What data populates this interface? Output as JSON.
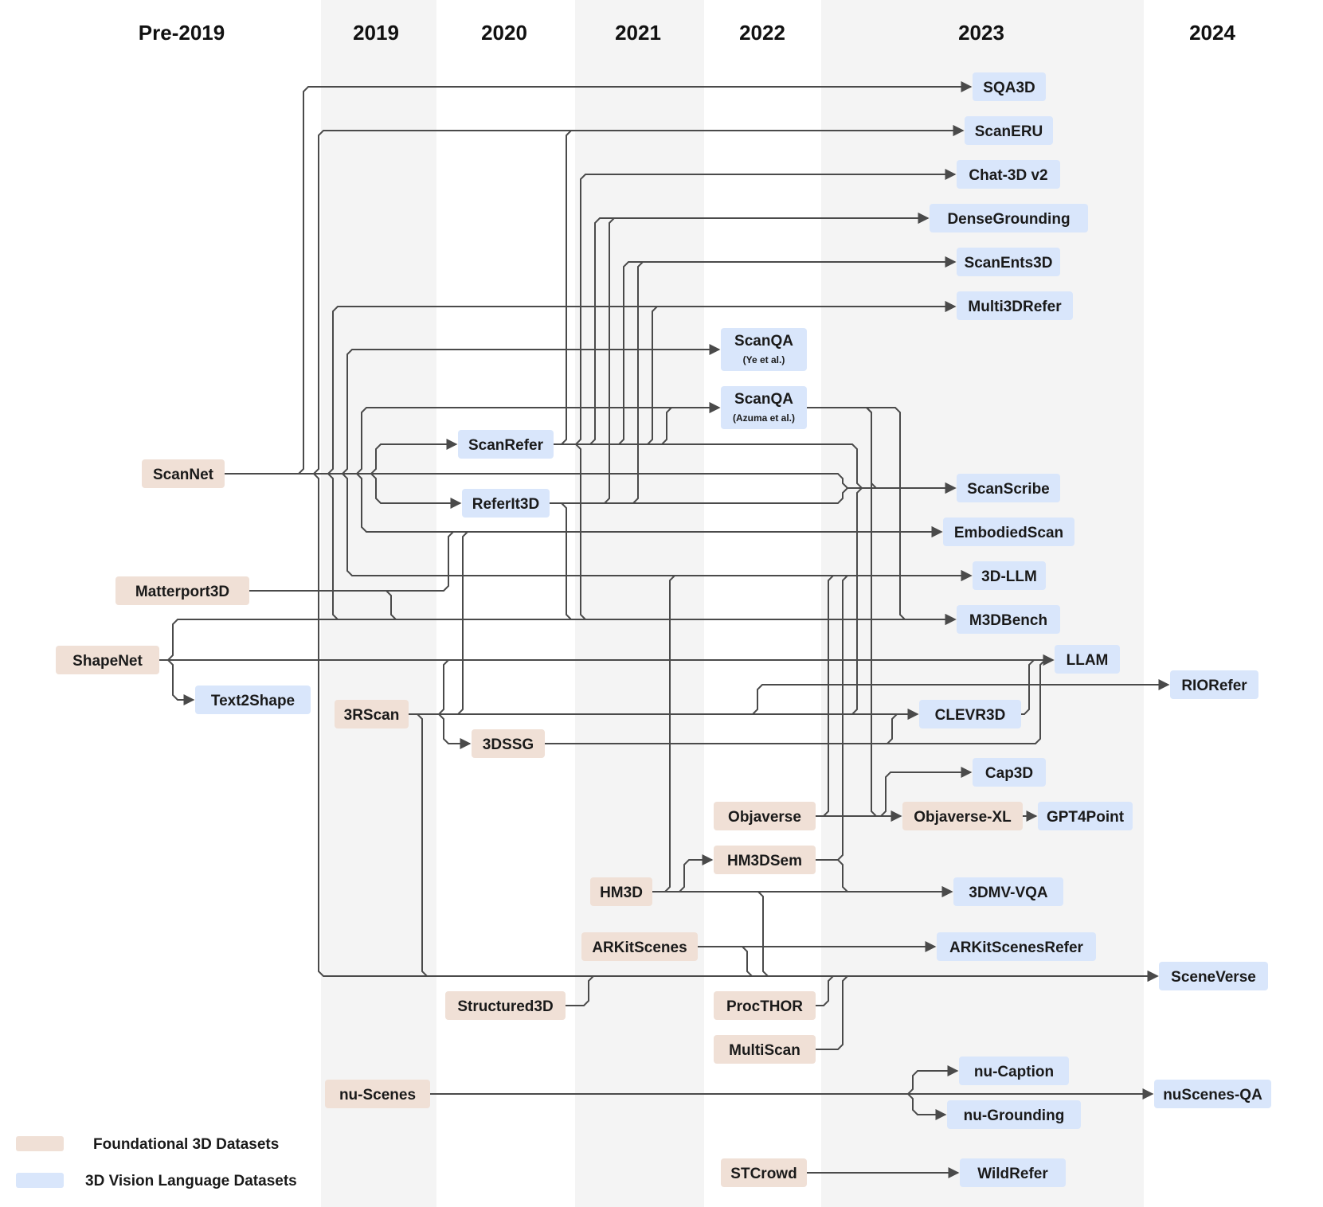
{
  "colors": {
    "foundational": "#f0e0d6",
    "vision_language": "#d9e6fb",
    "band": "#f4f4f4",
    "edge": "#4a4a4a"
  },
  "years": [
    "Pre-2019",
    "2019",
    "2020",
    "2021",
    "2022",
    "2023",
    "2024"
  ],
  "legend": {
    "foundational": "Foundational 3D Datasets",
    "vision_language": "3D Vision Language Datasets"
  },
  "nodes": [
    {
      "id": "ScanNet",
      "label": "ScanNet",
      "type": "foundational"
    },
    {
      "id": "Matterport3D",
      "label": "Matterport3D",
      "type": "foundational"
    },
    {
      "id": "ShapeNet",
      "label": "ShapeNet",
      "type": "foundational"
    },
    {
      "id": "Text2Shape",
      "label": "Text2Shape",
      "type": "vision_language"
    },
    {
      "id": "3RScan",
      "label": "3RScan",
      "type": "foundational"
    },
    {
      "id": "nu-Scenes",
      "label": "nu-Scenes",
      "type": "foundational"
    },
    {
      "id": "ScanRefer",
      "label": "ScanRefer",
      "type": "vision_language"
    },
    {
      "id": "ReferIt3D",
      "label": "ReferIt3D",
      "type": "vision_language"
    },
    {
      "id": "3DSSG",
      "label": "3DSSG",
      "type": "foundational"
    },
    {
      "id": "Structured3D",
      "label": "Structured3D",
      "type": "foundational"
    },
    {
      "id": "HM3D",
      "label": "HM3D",
      "type": "foundational"
    },
    {
      "id": "ARKitScenes",
      "label": "ARKitScenes",
      "type": "foundational"
    },
    {
      "id": "ScanQA-Ye",
      "label": "ScanQA",
      "sub": "(Ye et al.)",
      "type": "vision_language"
    },
    {
      "id": "ScanQA-Azuma",
      "label": "ScanQA",
      "sub": "(Azuma et al.)",
      "type": "vision_language"
    },
    {
      "id": "Objaverse",
      "label": "Objaverse",
      "type": "foundational"
    },
    {
      "id": "HM3DSem",
      "label": "HM3DSem",
      "type": "foundational"
    },
    {
      "id": "ProcTHOR",
      "label": "ProcTHOR",
      "type": "foundational"
    },
    {
      "id": "MultiScan",
      "label": "MultiScan",
      "type": "foundational"
    },
    {
      "id": "STCrowd",
      "label": "STCrowd",
      "type": "foundational"
    },
    {
      "id": "SQA3D",
      "label": "SQA3D",
      "type": "vision_language"
    },
    {
      "id": "ScanERU",
      "label": "ScanERU",
      "type": "vision_language"
    },
    {
      "id": "Chat-3D v2",
      "label": "Chat-3D v2",
      "type": "vision_language"
    },
    {
      "id": "DenseGrounding",
      "label": "DenseGrounding",
      "type": "vision_language"
    },
    {
      "id": "ScanEnts3D",
      "label": "ScanEnts3D",
      "type": "vision_language"
    },
    {
      "id": "Multi3DRefer",
      "label": "Multi3DRefer",
      "type": "vision_language"
    },
    {
      "id": "ScanScribe",
      "label": "ScanScribe",
      "type": "vision_language"
    },
    {
      "id": "EmbodiedScan",
      "label": "EmbodiedScan",
      "type": "vision_language"
    },
    {
      "id": "3D-LLM",
      "label": "3D-LLM",
      "type": "vision_language"
    },
    {
      "id": "M3DBench",
      "label": "M3DBench",
      "type": "vision_language"
    },
    {
      "id": "LLAM",
      "label": "LLAM",
      "type": "vision_language"
    },
    {
      "id": "CLEVR3D",
      "label": "CLEVR3D",
      "type": "vision_language"
    },
    {
      "id": "Cap3D",
      "label": "Cap3D",
      "type": "vision_language"
    },
    {
      "id": "Objaverse-XL",
      "label": "Objaverse-XL",
      "type": "foundational"
    },
    {
      "id": "GPT4Point",
      "label": "GPT4Point",
      "type": "vision_language"
    },
    {
      "id": "3DMV-VQA",
      "label": "3DMV-VQA",
      "type": "vision_language"
    },
    {
      "id": "ARKitScenesRefer",
      "label": "ARKitScenesRefer",
      "type": "vision_language"
    },
    {
      "id": "nu-Caption",
      "label": "nu-Caption",
      "type": "vision_language"
    },
    {
      "id": "nu-Grounding",
      "label": "nu-Grounding",
      "type": "vision_language"
    },
    {
      "id": "WildRefer",
      "label": "WildRefer",
      "type": "vision_language"
    },
    {
      "id": "RIORefer",
      "label": "RIORefer",
      "type": "vision_language"
    },
    {
      "id": "SceneVerse",
      "label": "SceneVerse",
      "type": "vision_language"
    },
    {
      "id": "nuScenes-QA",
      "label": "nuScenes-QA",
      "type": "vision_language"
    }
  ]
}
